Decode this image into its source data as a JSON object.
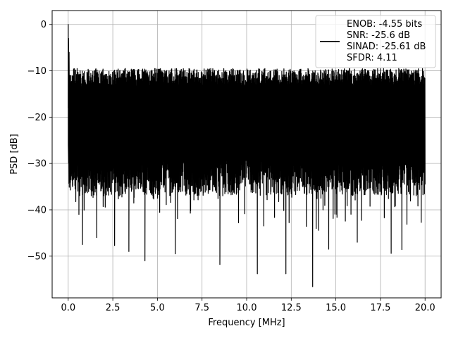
{
  "chart_data": {
    "type": "line",
    "xlabel": "Frequency [MHz]",
    "ylabel": "PSD [dB]",
    "xlim": [
      -0.9,
      20.9
    ],
    "ylim": [
      -59,
      3
    ],
    "xticks": [
      0.0,
      2.5,
      5.0,
      7.5,
      10.0,
      12.5,
      15.0,
      17.5,
      20.0
    ],
    "xtick_labels": [
      "0.0",
      "2.5",
      "5.0",
      "7.5",
      "10.0",
      "12.5",
      "15.0",
      "17.5",
      "20.0"
    ],
    "yticks": [
      0,
      -10,
      -20,
      -30,
      -40,
      -50
    ],
    "ytick_labels": [
      "0",
      "−10",
      "−20",
      "−30",
      "−40",
      "−50"
    ],
    "grid": true,
    "legend_position": "top-right",
    "series": [
      {
        "color": "#000000",
        "description": "Noise-like power spectral density spanning 0 to 20 MHz; peak at 0 dB near 0 MHz, upper envelope near -9 dB, lower excursions mostly between -35 and -48 dB with deepest notches near -56 dB",
        "x_range": [
          0.0,
          20.0
        ],
        "peak": {
          "x": 0.0,
          "y": 0.0
        },
        "typical_upper": -9.5,
        "typical_lower": -33,
        "notable_minima": [
          {
            "x": 0.6,
            "y": -41.0
          },
          {
            "x": 0.8,
            "y": -47.5
          },
          {
            "x": 1.6,
            "y": -46.0
          },
          {
            "x": 2.6,
            "y": -47.7
          },
          {
            "x": 3.4,
            "y": -49.0
          },
          {
            "x": 4.3,
            "y": -51.0
          },
          {
            "x": 6.0,
            "y": -49.5
          },
          {
            "x": 8.5,
            "y": -51.8
          },
          {
            "x": 10.6,
            "y": -53.8
          },
          {
            "x": 12.2,
            "y": -53.8
          },
          {
            "x": 13.7,
            "y": -56.6
          },
          {
            "x": 14.6,
            "y": -48.5
          },
          {
            "x": 16.2,
            "y": -47.0
          },
          {
            "x": 18.1,
            "y": -49.4
          },
          {
            "x": 18.7,
            "y": -48.6
          }
        ]
      }
    ],
    "legend_entries": [
      "ENOB: -4.55 bits",
      "SNR: -25.6 dB",
      "SINAD: -25.61 dB",
      "SFDR: 4.11"
    ]
  }
}
